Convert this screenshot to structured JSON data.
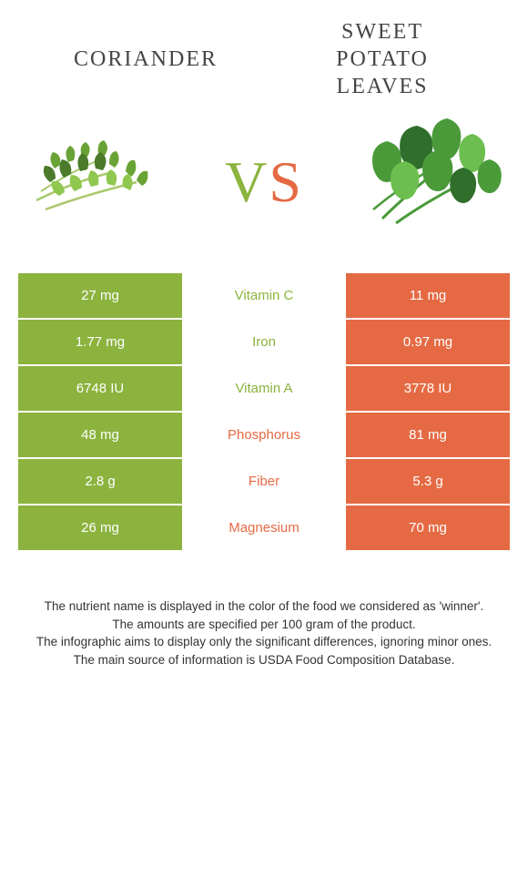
{
  "colors": {
    "left": "#8bb33e",
    "right": "#e56a44",
    "leaf_dark": "#4a7a2a",
    "leaf_mid": "#6aa335",
    "leaf_light": "#8fc74f",
    "stem": "#a8c96b",
    "potato_dark": "#2f6e2b",
    "potato_mid": "#4a9a3a",
    "potato_light": "#6cbf4e"
  },
  "header": {
    "left_title": "CORIANDER",
    "right_title_line1": "SWEET",
    "right_title_line2": "POTATO",
    "right_title_line3": "LEAVES",
    "vs_v": "V",
    "vs_s": "S"
  },
  "rows": [
    {
      "left": "27 mg",
      "label": "Vitamin C",
      "right": "11 mg",
      "winner": "left"
    },
    {
      "left": "1.77 mg",
      "label": "Iron",
      "right": "0.97 mg",
      "winner": "left"
    },
    {
      "left": "6748 IU",
      "label": "Vitamin A",
      "right": "3778 IU",
      "winner": "left"
    },
    {
      "left": "48 mg",
      "label": "Phosphorus",
      "right": "81 mg",
      "winner": "right"
    },
    {
      "left": "2.8 g",
      "label": "Fiber",
      "right": "5.3 g",
      "winner": "right"
    },
    {
      "left": "26 mg",
      "label": "Magnesium",
      "right": "70 mg",
      "winner": "right"
    }
  ],
  "footer": {
    "line1": "The nutrient name is displayed in the color of the food we considered as 'winner'.",
    "line2": "The amounts are specified per 100 gram of the product.",
    "line3": "The infographic aims to display only the significant differences, ignoring minor ones.",
    "line4": "The main source of information is USDA Food Composition Database."
  }
}
